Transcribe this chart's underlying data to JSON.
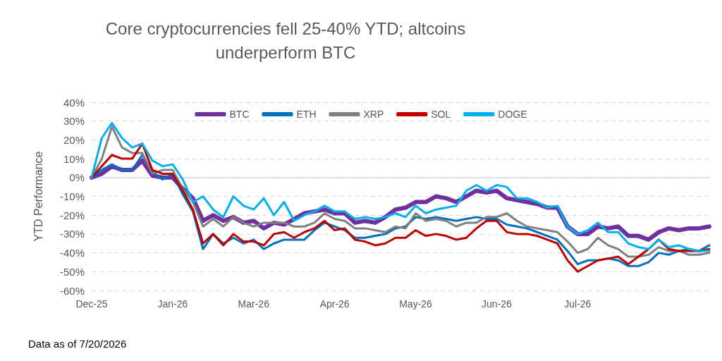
{
  "chart_data": {
    "type": "line",
    "title": "Core cryptocurrencies fell 25-40% YTD; altcoins\nunderperform BTC",
    "ylabel": "YTD Performance",
    "annotations": [
      "Data as of 7/20/2026"
    ],
    "categories": [
      "Dec-25",
      null,
      null,
      null,
      null,
      null,
      null,
      null,
      "Jan-26",
      null,
      null,
      null,
      null,
      null,
      null,
      null,
      "Mar-26",
      null,
      null,
      null,
      null,
      null,
      null,
      null,
      "Apr-26",
      null,
      null,
      null,
      null,
      null,
      null,
      null,
      "May-26",
      null,
      null,
      null,
      null,
      null,
      null,
      null,
      "Jun-26",
      null,
      null,
      null,
      null,
      null,
      null,
      null,
      "Jul-26",
      null,
      null,
      null,
      null,
      null,
      null,
      null,
      null,
      null,
      null,
      null,
      null,
      null
    ],
    "series": [
      {
        "name": "BTC",
        "color": "#7030a0",
        "values": [
          0,
          2,
          6,
          4,
          4,
          9,
          1,
          0,
          0,
          -6,
          -11,
          -23,
          -20,
          -23,
          -21,
          -24,
          -23,
          -27,
          -24,
          -25,
          -22,
          -19,
          -18,
          -17,
          -19,
          -19,
          -24,
          -23,
          -24,
          -21,
          -17,
          -16,
          -13,
          -13,
          -10,
          -11,
          -13,
          -10,
          -7,
          -8,
          -7,
          -11,
          -12,
          -13,
          -14,
          -16,
          -16,
          -26,
          -30,
          -30,
          -26,
          -27,
          -26,
          -31,
          -31,
          -33,
          -29,
          -27,
          -28,
          -27,
          -27,
          -26
        ]
      },
      {
        "name": "ETH",
        "color": "#0070c0",
        "values": [
          0,
          4,
          7,
          4,
          4,
          12,
          3,
          -1,
          2,
          -9,
          -18,
          -38,
          -30,
          -35,
          -32,
          -35,
          -33,
          -38,
          -35,
          -33,
          -33,
          -33,
          -28,
          -24,
          -26,
          -28,
          -32,
          -32,
          -31,
          -30,
          -27,
          -26,
          -21,
          -22,
          -21,
          -22,
          -23,
          -22,
          -21,
          -22,
          -22,
          -25,
          -26,
          -27,
          -29,
          -31,
          -33,
          -39,
          -46,
          -44,
          -44,
          -43,
          -44,
          -47,
          -47,
          -45,
          -40,
          -41,
          -39,
          -38,
          -39,
          -36
        ]
      },
      {
        "name": "XRP",
        "color": "#808080",
        "values": [
          0,
          10,
          27,
          16,
          13,
          13,
          2,
          4,
          4,
          -6,
          -13,
          -26,
          -22,
          -26,
          -21,
          -24,
          -26,
          -24,
          -24,
          -24,
          -26,
          -26,
          -24,
          -19,
          -22,
          -23,
          -27,
          -27,
          -28,
          -29,
          -26,
          -27,
          -19,
          -23,
          -22,
          -23,
          -26,
          -24,
          -24,
          -21,
          -21,
          -19,
          -23,
          -26,
          -27,
          -28,
          -29,
          -34,
          -40,
          -38,
          -32,
          -36,
          -38,
          -42,
          -42,
          -41,
          -37,
          -39,
          -39,
          -41,
          -41,
          -40
        ]
      },
      {
        "name": "SOL",
        "color": "#c00000",
        "values": [
          0,
          6,
          12,
          10,
          10,
          18,
          4,
          2,
          2,
          -7,
          -17,
          -35,
          -30,
          -36,
          -30,
          -34,
          -34,
          -36,
          -30,
          -29,
          -32,
          -29,
          -27,
          -23,
          -28,
          -27,
          -33,
          -34,
          -36,
          -35,
          -32,
          -32,
          -28,
          -31,
          -30,
          -31,
          -33,
          -32,
          -27,
          -23,
          -23,
          -29,
          -30,
          -30,
          -31,
          -33,
          -35,
          -44,
          -50,
          -47,
          -44,
          -43,
          -42,
          -46,
          -42,
          -38,
          -33,
          -38,
          -39,
          -39,
          -39,
          -38
        ]
      },
      {
        "name": "DOGE",
        "color": "#00b0f0",
        "values": [
          0,
          21,
          29,
          21,
          16,
          18,
          9,
          6,
          7,
          -1,
          -13,
          -10,
          -17,
          -21,
          -10,
          -15,
          -17,
          -11,
          -20,
          -13,
          -23,
          -20,
          -18,
          -15,
          -18,
          -18,
          -22,
          -21,
          -22,
          -21,
          -19,
          -21,
          -15,
          -19,
          -17,
          -16,
          -15,
          -7,
          -4,
          -7,
          -4,
          -5,
          -11,
          -11,
          -13,
          -16,
          -15,
          -26,
          -30,
          -28,
          -24,
          -29,
          -29,
          -35,
          -37,
          -38,
          -33,
          -37,
          -36,
          -38,
          -39,
          -39
        ]
      }
    ],
    "ylim": [
      -60,
      40
    ],
    "yticks": [
      {
        "value": -60,
        "label": "-60%"
      },
      {
        "value": -50,
        "label": "-50%"
      },
      {
        "value": -40,
        "label": "-40%"
      },
      {
        "value": -30,
        "label": "-30%"
      },
      {
        "value": -20,
        "label": "-20%"
      },
      {
        "value": -10,
        "label": "-10%"
      },
      {
        "value": 0,
        "label": "0%"
      },
      {
        "value": 10,
        "label": "10%"
      },
      {
        "value": 20,
        "label": "20%"
      },
      {
        "value": 30,
        "label": "30%"
      },
      {
        "value": 40,
        "label": "40%"
      }
    ],
    "grid": "y",
    "legend": "top",
    "marker": "none",
    "line_style": "solid"
  }
}
